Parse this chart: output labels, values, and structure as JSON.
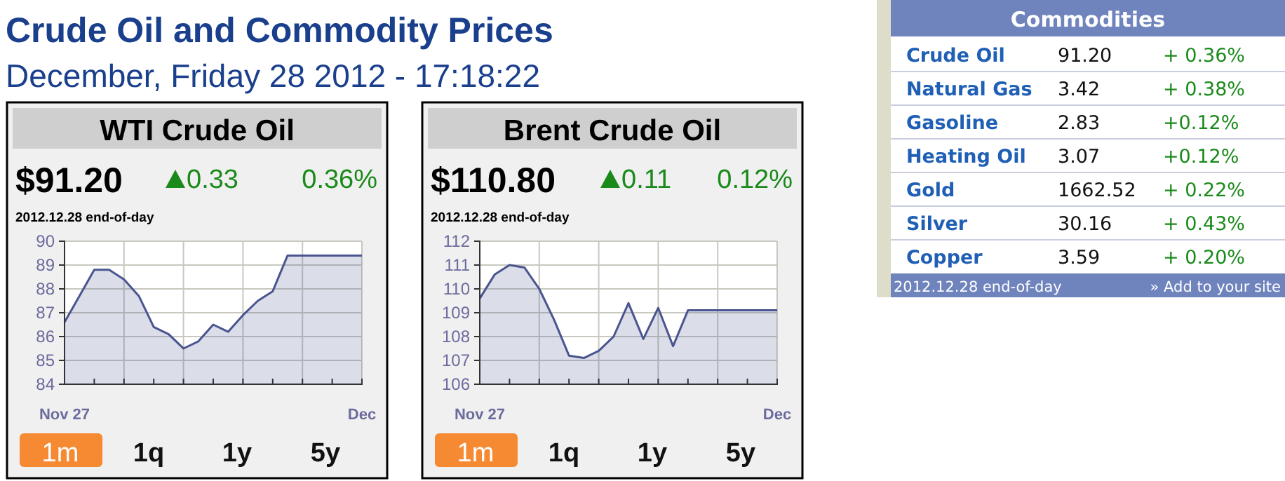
{
  "chart_data": [
    {
      "type": "other",
      "title": "Crude Oil and Commodity Prices",
      "subtitle": "December, Friday 28 2012 - 17:18:22"
    },
    {
      "type": "area",
      "title": "WTI Crude Oil",
      "color": "#4a5590",
      "categories": [
        "Nov 27",
        null,
        null,
        null,
        null,
        null,
        null,
        null,
        null,
        null,
        null,
        null,
        null,
        null,
        null,
        null,
        null,
        null,
        null,
        null,
        "Dec"
      ],
      "values": [
        86.6,
        87.7,
        88.8,
        88.8,
        88.4,
        87.7,
        86.4,
        86.1,
        85.5,
        85.8,
        86.5,
        86.2,
        86.9,
        87.5,
        87.9,
        89.4,
        89.4,
        89.4,
        89.4,
        89.4,
        89.4
      ],
      "ylim": [
        84,
        90
      ],
      "yticks": [
        84,
        85,
        86,
        87,
        88,
        89,
        90
      ],
      "grid": true,
      "annotations": [
        "$91.20",
        "0.33",
        "0.36%",
        "2012.12.28 end-of-day",
        "1m",
        "1q",
        "1y",
        "5y"
      ]
    },
    {
      "type": "area",
      "title": "Brent Crude Oil",
      "color": "#4a5590",
      "categories": [
        "Nov 27",
        null,
        null,
        null,
        null,
        null,
        null,
        null,
        null,
        null,
        null,
        null,
        null,
        null,
        null,
        null,
        null,
        null,
        null,
        null,
        "Dec"
      ],
      "values": [
        109.6,
        110.6,
        111.0,
        110.9,
        110.0,
        108.7,
        107.2,
        107.1,
        107.4,
        108.0,
        109.4,
        107.9,
        109.2,
        107.6,
        109.1,
        109.1,
        109.1,
        109.1,
        109.1,
        109.1,
        109.1
      ],
      "ylim": [
        106,
        112
      ],
      "yticks": [
        106,
        107,
        108,
        109,
        110,
        111,
        112
      ],
      "grid": true,
      "annotations": [
        "$110.80",
        "0.11",
        "0.12%",
        "2012.12.28 end-of-day",
        "1m",
        "1q",
        "1y",
        "5y"
      ]
    },
    {
      "type": "other",
      "title": "Commodities",
      "annotations": [
        "Crude Oil",
        "91.20",
        "+ 0.36%",
        "Natural Gas",
        "3.42",
        "+ 0.38%",
        "Gasoline",
        "2.83",
        "+0.12%",
        "Heating Oil",
        "3.07",
        "+0.12%",
        "Gold",
        "1662.52",
        "+ 0.22%",
        "Silver",
        "30.16",
        "+ 0.43%",
        "Copper",
        "3.59",
        "+ 0.20%",
        "2012.12.28 end-of-day",
        "» Add to your site"
      ]
    }
  ]
}
